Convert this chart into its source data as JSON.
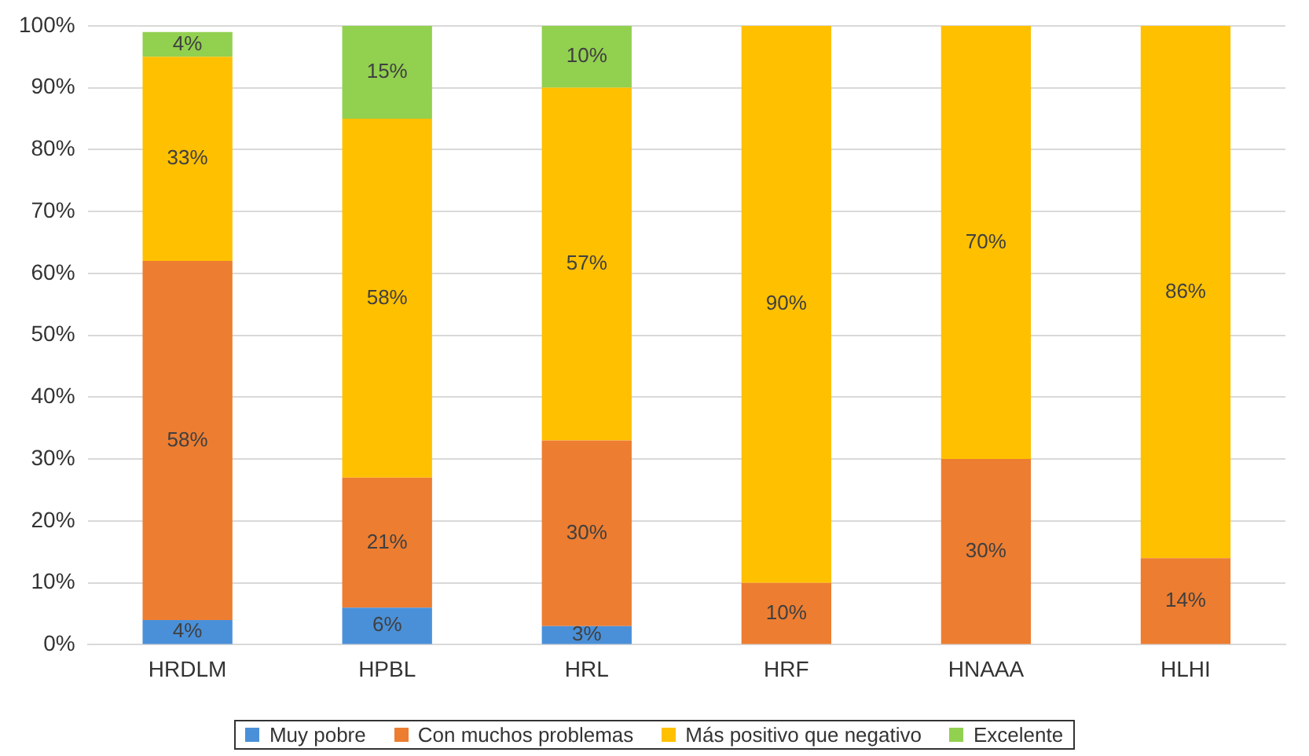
{
  "chart_data": {
    "type": "bar",
    "stacked": true,
    "categories": [
      "HRDLM",
      "HPBL",
      "HRL",
      "HRF",
      "HNAAA",
      "HLHI"
    ],
    "series": [
      {
        "name": "Muy pobre",
        "color": "#4a90d9",
        "values": [
          4,
          6,
          3,
          null,
          null,
          null
        ],
        "value_labels": [
          "4%",
          "6%",
          "3%",
          null,
          null,
          null
        ]
      },
      {
        "name": "Con muchos problemas",
        "color": "#ed7d31",
        "values": [
          58,
          21,
          30,
          10,
          30,
          14
        ],
        "value_labels": [
          "58%",
          "21%",
          "30%",
          "10%",
          "30%",
          "14%"
        ]
      },
      {
        "name": "Más positivo que negativo",
        "color": "#ffc000",
        "values": [
          33,
          58,
          57,
          90,
          70,
          86
        ],
        "value_labels": [
          "33%",
          "58%",
          "57%",
          "90%",
          "70%",
          "86%"
        ]
      },
      {
        "name": "Excelente",
        "color": "#92d050",
        "values": [
          4,
          15,
          10,
          null,
          null,
          null
        ],
        "value_labels": [
          "4%",
          "15%",
          "10%",
          null,
          null,
          null
        ]
      }
    ],
    "ylim": [
      0,
      100
    ],
    "yticks": [
      {
        "value": 0,
        "label": "0%"
      },
      {
        "value": 10,
        "label": "10%"
      },
      {
        "value": 20,
        "label": "20%"
      },
      {
        "value": 30,
        "label": "30%"
      },
      {
        "value": 40,
        "label": "40%"
      },
      {
        "value": 50,
        "label": "50%"
      },
      {
        "value": 60,
        "label": "60%"
      },
      {
        "value": 70,
        "label": "70%"
      },
      {
        "value": 80,
        "label": "80%"
      },
      {
        "value": 90,
        "label": "90%"
      },
      {
        "value": 100,
        "label": "100%"
      }
    ],
    "grid": "y",
    "legend": "bottom"
  }
}
